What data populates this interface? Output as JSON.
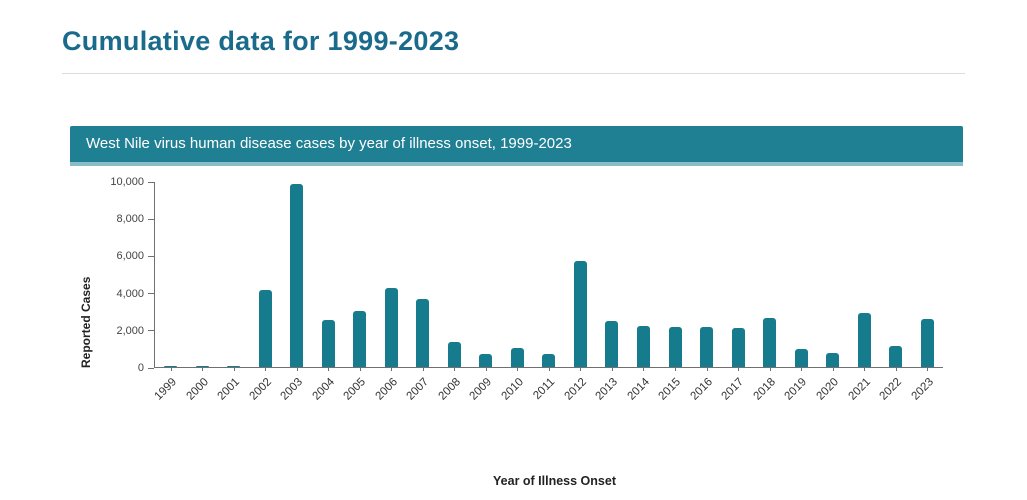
{
  "page": {
    "title": "Cumulative data for 1999-2023"
  },
  "chart_data": {
    "type": "bar",
    "title": "West Nile virus human disease cases by year of illness onset, 1999-2023",
    "xlabel": "Year of Illness Onset",
    "ylabel": "Reported Cases",
    "ylim": [
      0,
      10000
    ],
    "yticks": [
      0,
      2000,
      4000,
      6000,
      8000,
      10000
    ],
    "categories": [
      "1999",
      "2000",
      "2001",
      "2002",
      "2003",
      "2004",
      "2005",
      "2006",
      "2007",
      "2008",
      "2009",
      "2010",
      "2011",
      "2012",
      "2013",
      "2014",
      "2015",
      "2016",
      "2017",
      "2018",
      "2019",
      "2020",
      "2021",
      "2022",
      "2023"
    ],
    "values": [
      62,
      21,
      66,
      4156,
      9862,
      2539,
      3000,
      4269,
      3630,
      1356,
      720,
      1021,
      712,
      5674,
      2469,
      2205,
      2175,
      2149,
      2097,
      2647,
      958,
      731,
      2911,
      1126,
      2566
    ],
    "grid": false,
    "legend": "none",
    "bar_color": "#177b8e",
    "header_bg": "#1f7f93"
  },
  "colors": {
    "page_title": "#1a6b8b",
    "divider": "#d9dde2",
    "axis": "#707070"
  }
}
